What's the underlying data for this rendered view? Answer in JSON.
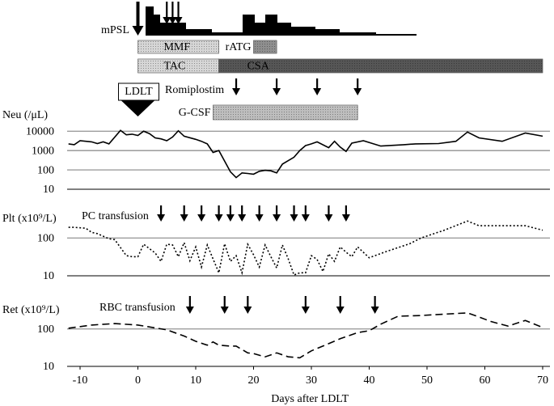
{
  "chart_data": [
    {
      "type": "timeline",
      "bars": [
        {
          "name": "MMF",
          "start": 0,
          "end": 14,
          "color": "#c8c8c8"
        },
        {
          "name": "rATG",
          "start": 20,
          "end": 24,
          "color": "#6a6a6a"
        },
        {
          "name": "TAC",
          "start": 0,
          "end": 14,
          "color": "#c8c8c8"
        },
        {
          "name": "CSA",
          "start": 14,
          "end": 70,
          "color": "#1e1e1e"
        },
        {
          "name": "G-CSF",
          "start": 13,
          "end": 38,
          "color": "#a8a8a8"
        }
      ],
      "arrows": [
        {
          "name": "mPSL",
          "days": [
            0,
            5,
            6,
            7
          ]
        },
        {
          "name": "Romiplostim",
          "days": [
            17,
            24,
            31,
            38
          ]
        }
      ],
      "milestone": {
        "label": "LDLT",
        "day": 0
      }
    },
    {
      "type": "line",
      "ylabel": "Neu (/μL)",
      "log": true,
      "ylim": [
        10,
        20000
      ],
      "yticks": [
        10,
        100,
        1000,
        10000
      ],
      "grid": true,
      "x": [
        -12,
        -11,
        -10,
        -8,
        -7,
        -6,
        -5,
        -3,
        -2,
        -1,
        0,
        1,
        2,
        3,
        4,
        5,
        6,
        7,
        8,
        10,
        11,
        12,
        13,
        14,
        16,
        17,
        18,
        19,
        20,
        21,
        22,
        23,
        24,
        25,
        27,
        28,
        29,
        30,
        31,
        33,
        34,
        35,
        36,
        37,
        39,
        42,
        46,
        48,
        52,
        55,
        57,
        59,
        63,
        67,
        70
      ],
      "series": [
        {
          "name": "Neu",
          "color": "#000",
          "dash": "solid",
          "values": [
            2200,
            2000,
            3200,
            2800,
            2300,
            2800,
            2200,
            11000,
            6500,
            7000,
            6000,
            10000,
            7500,
            4500,
            4000,
            3200,
            5000,
            10500,
            5500,
            3800,
            3000,
            2200,
            800,
            1000,
            80,
            40,
            70,
            65,
            60,
            85,
            95,
            90,
            70,
            200,
            450,
            1000,
            1800,
            2200,
            2800,
            1400,
            3000,
            1500,
            900,
            2400,
            3200,
            1700,
            2000,
            2200,
            2300,
            3000,
            9000,
            4500,
            3000,
            8000,
            5500
          ]
        }
      ]
    },
    {
      "type": "line",
      "ylabel": "Plt (x10⁹/L)",
      "log": true,
      "ylim": [
        10,
        400
      ],
      "yticks": [
        10,
        100
      ],
      "grid": true,
      "x": [
        -12,
        -11,
        -9,
        -8,
        -7,
        -5,
        -4,
        -2,
        -1,
        0,
        1,
        3,
        4,
        5,
        6,
        7,
        8,
        9,
        10,
        11,
        12,
        13,
        14,
        15,
        16,
        17,
        18,
        19,
        20,
        21,
        22,
        23,
        24,
        25,
        26,
        27,
        28,
        29,
        30,
        31,
        32,
        33,
        34,
        35,
        36,
        37,
        38,
        40,
        43,
        47,
        49,
        53,
        57,
        59,
        63,
        67,
        70
      ],
      "series": [
        {
          "name": "Plt",
          "color": "#000",
          "dash": "dotted",
          "values": [
            190,
            190,
            180,
            140,
            130,
            95,
            90,
            34,
            32,
            32,
            68,
            40,
            24,
            68,
            65,
            32,
            75,
            25,
            58,
            17,
            65,
            28,
            12,
            70,
            24,
            34,
            12,
            68,
            36,
            17,
            65,
            32,
            16,
            65,
            28,
            10.5,
            12,
            12,
            34,
            27,
            13,
            38,
            24,
            58,
            42,
            32,
            58,
            30,
            44,
            70,
            100,
            160,
            280,
            210,
            210,
            210,
            160
          ]
        }
      ],
      "arrows": {
        "name": "PC transfusion",
        "days": [
          4,
          8,
          11,
          14,
          16,
          18,
          21,
          24,
          27,
          29,
          33,
          36
        ]
      }
    },
    {
      "type": "line",
      "ylabel": "Ret (x10⁹/L)",
      "log": true,
      "ylim": [
        10,
        400
      ],
      "yticks": [
        10,
        100
      ],
      "grid": true,
      "xlabel": "Days after LDLT",
      "xlim": [
        -12,
        71.5
      ],
      "xticks": [
        -10,
        0,
        10,
        20,
        30,
        40,
        50,
        60,
        70
      ],
      "x": [
        -12,
        -8,
        -4,
        0,
        5,
        8,
        10,
        12,
        13,
        14,
        16,
        17,
        19,
        20,
        22,
        24,
        26,
        28,
        30,
        32,
        35,
        38,
        40,
        42,
        45,
        49,
        53,
        57,
        59,
        61,
        64,
        67,
        70
      ],
      "series": [
        {
          "name": "Ret",
          "color": "#000",
          "dash": "dashed",
          "values": [
            105,
            128,
            140,
            128,
            95,
            65,
            47,
            37,
            45,
            37,
            35,
            35,
            23,
            22,
            18,
            23,
            18,
            17,
            26,
            35,
            55,
            80,
            90,
            135,
            220,
            230,
            250,
            270,
            210,
            160,
            120,
            170,
            110
          ]
        }
      ],
      "arrows": {
        "name": "RBC transfusion",
        "days": [
          9,
          15,
          19,
          29,
          35,
          41
        ]
      }
    }
  ]
}
